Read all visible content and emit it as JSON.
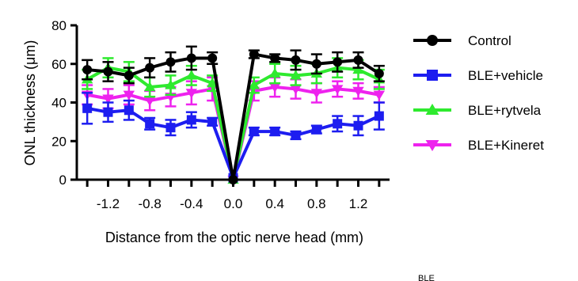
{
  "chart_data": {
    "type": "line",
    "xlabel": "Distance from the optic nerve head (mm)",
    "ylabel": "ONL thickness (μm)",
    "xlim": [
      -1.5,
      1.5
    ],
    "ylim": [
      0,
      80
    ],
    "xticks": [
      -1.2,
      -0.8,
      -0.4,
      0.0,
      0.4,
      0.8,
      1.2
    ],
    "xtick_labels": [
      "-1.2",
      "-0.8",
      "-0.4",
      "0.0",
      "0.4",
      "0.8",
      "1.2"
    ],
    "yticks": [
      0,
      20,
      40,
      60,
      80
    ],
    "ytick_labels": [
      "0",
      "20",
      "40",
      "60",
      "80"
    ],
    "x": [
      -1.4,
      -1.2,
      -1.0,
      -0.8,
      -0.6,
      -0.4,
      -0.2,
      0.0,
      0.2,
      0.4,
      0.6,
      0.8,
      1.0,
      1.2,
      1.4
    ],
    "series": [
      {
        "name": "Control",
        "color": "#000000",
        "marker": "circle",
        "values": [
          57,
          56,
          54,
          58,
          61,
          63,
          63,
          0,
          65,
          63,
          62,
          60,
          61,
          62,
          55
        ],
        "errors": [
          5,
          5,
          4,
          5,
          5,
          6,
          3,
          0,
          2,
          2,
          5,
          5,
          5,
          4,
          4
        ]
      },
      {
        "name": "BLE+vehicle",
        "color": "#1d1df0",
        "marker": "square",
        "values": [
          37,
          35,
          36,
          29,
          27,
          31,
          30,
          1,
          25,
          25,
          23,
          26,
          29,
          28,
          33
        ],
        "errors": [
          8,
          5,
          5,
          3,
          4,
          4,
          2,
          0,
          2,
          2,
          2,
          2,
          4,
          5,
          7
        ]
      },
      {
        "name": "BLE+rytvela",
        "color": "#2eea2e",
        "marker": "triangle-up",
        "values": [
          52,
          58,
          56,
          48,
          49,
          54,
          50,
          0,
          49,
          55,
          54,
          55,
          58,
          57,
          52
        ],
        "errors": [
          5,
          5,
          5,
          5,
          5,
          5,
          4,
          0,
          4,
          5,
          5,
          5,
          5,
          5,
          5
        ]
      },
      {
        "name": "BLE+Kineret",
        "color": "#ee22ee",
        "marker": "triangle-down",
        "values": [
          44,
          42,
          44,
          41,
          43,
          45,
          47,
          0,
          46,
          48,
          47,
          45,
          47,
          46,
          44
        ],
        "errors": [
          5,
          5,
          5,
          5,
          5,
          6,
          6,
          0,
          5,
          5,
          5,
          5,
          4,
          4,
          4
        ]
      }
    ],
    "legend_position": "right",
    "grid": false
  },
  "stray_label": "BLE"
}
